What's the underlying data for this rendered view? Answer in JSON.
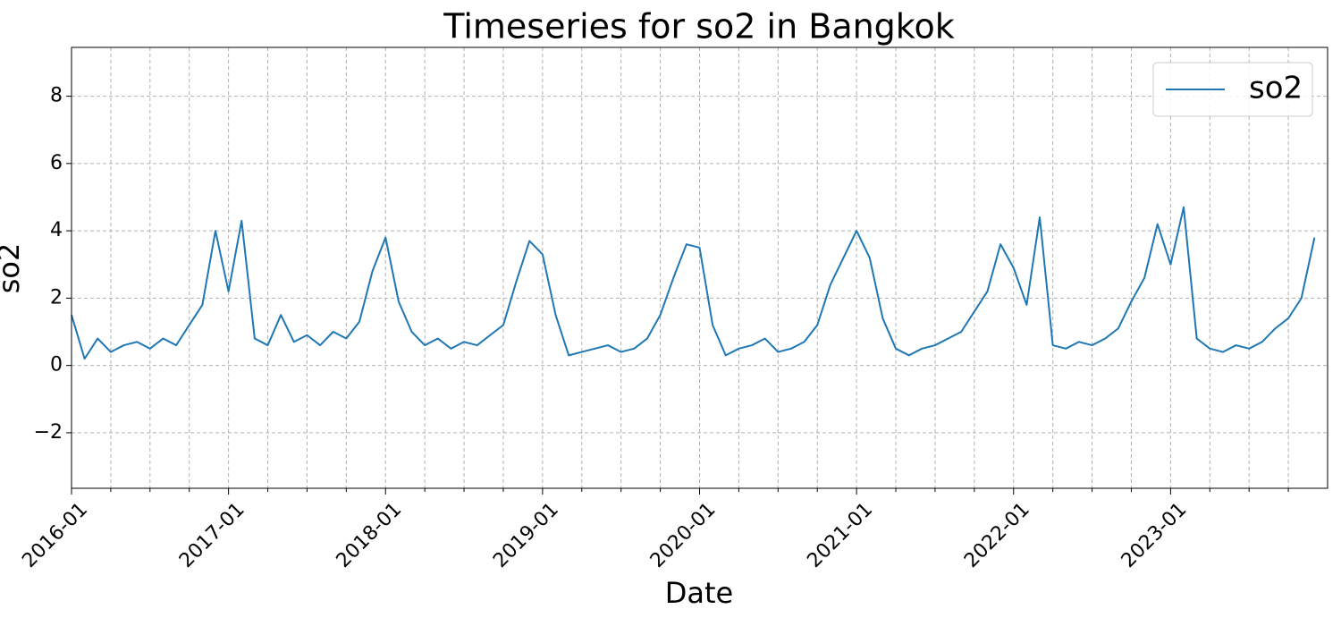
{
  "chart_data": {
    "type": "line",
    "title": "Timeseries for so2 in Bangkok",
    "x_label": "Date",
    "y_label": "so2",
    "x": [
      "2016-01",
      "2016-02",
      "2016-03",
      "2016-04",
      "2016-05",
      "2016-06",
      "2016-07",
      "2016-08",
      "2016-09",
      "2016-10",
      "2016-11",
      "2016-12",
      "2017-01",
      "2017-02",
      "2017-03",
      "2017-04",
      "2017-05",
      "2017-06",
      "2017-07",
      "2017-08",
      "2017-09",
      "2017-10",
      "2017-11",
      "2017-12",
      "2018-01",
      "2018-02",
      "2018-03",
      "2018-04",
      "2018-05",
      "2018-06",
      "2018-07",
      "2018-08",
      "2018-09",
      "2018-10",
      "2018-11",
      "2018-12",
      "2019-01",
      "2019-02",
      "2019-03",
      "2019-04",
      "2019-05",
      "2019-06",
      "2019-07",
      "2019-08",
      "2019-09",
      "2019-10",
      "2019-11",
      "2019-12",
      "2020-01",
      "2020-02",
      "2020-03",
      "2020-04",
      "2020-05",
      "2020-06",
      "2020-07",
      "2020-08",
      "2020-09",
      "2020-10",
      "2020-11",
      "2020-12",
      "2021-01",
      "2021-02",
      "2021-03",
      "2021-04",
      "2021-05",
      "2021-06",
      "2021-07",
      "2021-08",
      "2021-09",
      "2021-10",
      "2021-11",
      "2021-12",
      "2022-01",
      "2022-02",
      "2022-03",
      "2022-04",
      "2022-05",
      "2022-06",
      "2022-07",
      "2022-08",
      "2022-09",
      "2022-10",
      "2022-11",
      "2022-12",
      "2023-01",
      "2023-02",
      "2023-03",
      "2023-04",
      "2023-05",
      "2023-06",
      "2023-07",
      "2023-08",
      "2023-09",
      "2023-10",
      "2023-11",
      "2023-12"
    ],
    "series": [
      {
        "name": "so2",
        "color": "#1f77b4",
        "values": [
          1.5,
          0.2,
          0.8,
          0.4,
          0.6,
          0.7,
          0.5,
          0.8,
          0.6,
          1.2,
          1.8,
          4.0,
          2.2,
          4.3,
          0.8,
          0.6,
          1.5,
          0.7,
          0.9,
          0.6,
          1.0,
          0.8,
          1.3,
          2.8,
          3.8,
          1.9,
          1.0,
          0.6,
          0.8,
          0.5,
          0.7,
          0.6,
          0.9,
          1.2,
          2.5,
          3.7,
          3.3,
          1.5,
          0.3,
          0.4,
          0.5,
          0.6,
          0.4,
          0.5,
          0.8,
          1.5,
          2.6,
          3.6,
          3.5,
          1.2,
          0.3,
          0.5,
          0.6,
          0.8,
          0.4,
          0.5,
          0.7,
          1.2,
          2.4,
          3.2,
          4.0,
          3.2,
          1.4,
          0.5,
          0.3,
          0.5,
          0.6,
          0.8,
          1.0,
          1.6,
          2.2,
          3.6,
          2.9,
          1.8,
          4.4,
          0.6,
          0.5,
          0.7,
          0.6,
          0.8,
          1.1,
          1.9,
          2.6,
          4.2,
          3.0,
          4.7,
          0.8,
          0.5,
          0.4,
          0.6,
          0.5,
          0.7,
          1.1,
          1.4,
          2.0,
          3.8
        ]
      }
    ],
    "xlim": [
      "2016-01",
      "2024-01"
    ],
    "xticks": [
      "2016-01",
      "2017-01",
      "2018-01",
      "2019-01",
      "2020-01",
      "2021-01",
      "2022-01",
      "2023-01"
    ],
    "xminorticks": [
      "2016-04",
      "2016-07",
      "2016-10",
      "2017-04",
      "2017-07",
      "2017-10",
      "2018-04",
      "2018-07",
      "2018-10",
      "2019-04",
      "2019-07",
      "2019-10",
      "2020-04",
      "2020-07",
      "2020-10",
      "2021-04",
      "2021-07",
      "2021-10",
      "2022-04",
      "2022-07",
      "2022-10",
      "2023-04",
      "2023-07",
      "2023-10"
    ],
    "ylim": [
      -3.65,
      9.45
    ],
    "yticks": [
      {
        "value": -2,
        "label": "−2"
      },
      0,
      2,
      4,
      6,
      8
    ],
    "grid": true,
    "legend": "upper right"
  }
}
